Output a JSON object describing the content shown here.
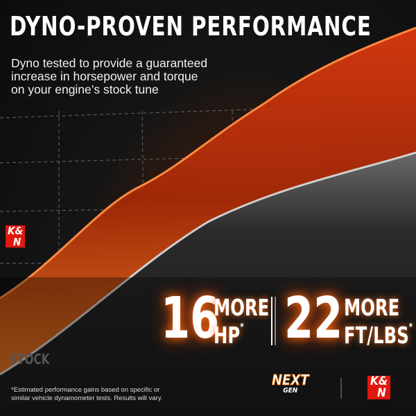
{
  "header": {
    "title": "DYNO-PROVEN PERFORMANCE",
    "description_lines": [
      "Dyno tested to provide a guaranteed",
      "increase in horsepower and torque",
      "on your engine’s stock tune"
    ]
  },
  "chart_labels": {
    "brand_tag": [
      "K&",
      "N"
    ],
    "stock": "STOCK"
  },
  "stats": [
    {
      "number": "16",
      "more": "MORE",
      "unit": "HP",
      "mark": "*"
    },
    {
      "number": "22",
      "more": "MORE",
      "unit": "FT/LBS",
      "mark": "*"
    }
  ],
  "footnote_lines": [
    "*Estimated performance gains based on specific or",
    "similar vehicle dynamometer tests. Results will vary."
  ],
  "logos": {
    "next_gen": [
      "NEXT",
      "GEN"
    ],
    "brand": [
      "K&",
      "N"
    ]
  }
}
